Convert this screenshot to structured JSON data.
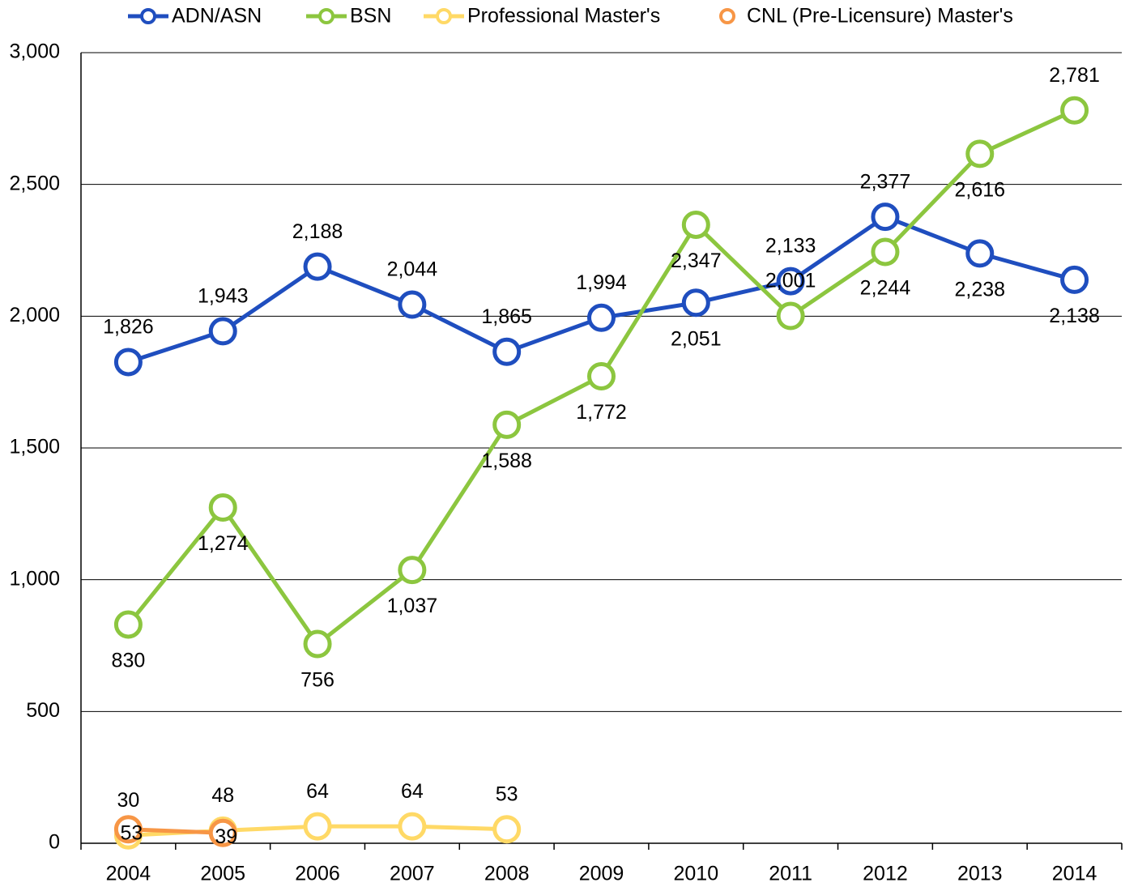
{
  "chart_data": {
    "type": "line",
    "categories": [
      "2004",
      "2005",
      "2006",
      "2007",
      "2008",
      "2009",
      "2010",
      "2011",
      "2012",
      "2013",
      "2014"
    ],
    "series": [
      {
        "name": "ADN/ASN",
        "color": "#1f4ebf",
        "values": [
          1826,
          1943,
          2188,
          2044,
          1865,
          1994,
          2051,
          2133,
          2377,
          2238,
          2138
        ],
        "value_labels": [
          "1,826",
          "1,943",
          "2,188",
          "2,044",
          "1,865",
          "1,994",
          "2,051",
          "2,133",
          "2,377",
          "2,238",
          "2,138"
        ]
      },
      {
        "name": "BSN",
        "color": "#8cc63f",
        "values": [
          830,
          1274,
          756,
          1037,
          1588,
          1772,
          2347,
          2001,
          2244,
          2616,
          2781
        ],
        "value_labels": [
          "830",
          "1,274",
          "756",
          "1,037",
          "1,588",
          "1,772",
          "2,347",
          "2,001",
          "2,244",
          "2,616",
          "2,781"
        ]
      },
      {
        "name": "Professional Master's",
        "color": "#ffd966",
        "values": [
          30,
          48,
          64,
          64,
          53,
          null,
          null,
          null,
          null,
          null,
          null
        ]
      },
      {
        "name": "CNL (Pre-Licensure) Master's",
        "color": "#f79646",
        "values": [
          53,
          39,
          null,
          null,
          null,
          null,
          null,
          null,
          null,
          null,
          null
        ]
      }
    ],
    "ylim": [
      0,
      3000
    ],
    "yticks": [
      0,
      500,
      {
        "value": 1000,
        "label": "1,000"
      },
      {
        "value": 1500,
        "label": "1,500"
      },
      {
        "value": 2000,
        "label": "2,000"
      },
      {
        "value": 2500,
        "label": "2,500"
      },
      {
        "value": 3000,
        "label": "3,000"
      }
    ],
    "grid": true,
    "legend": "top"
  }
}
